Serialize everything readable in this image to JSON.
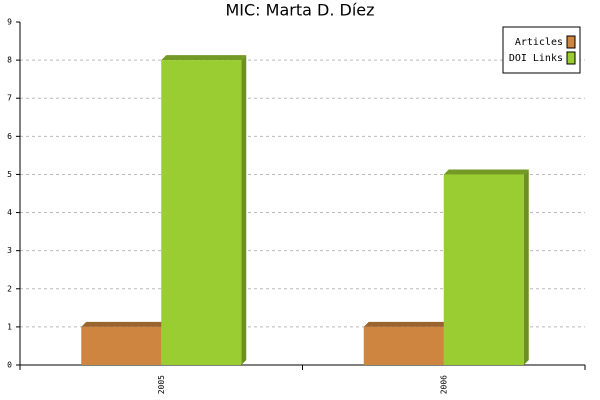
{
  "chart_data": {
    "type": "bar",
    "title": "MIC: Marta D. Díez",
    "categories": [
      "2005",
      "2006"
    ],
    "series": [
      {
        "name": "Articles",
        "color": "#cd853f",
        "values": [
          1,
          1
        ]
      },
      {
        "name": "DOI Links",
        "color": "#9acd32",
        "values": [
          8,
          5
        ]
      }
    ],
    "ylim": [
      0,
      9
    ],
    "yticks": [
      0,
      1,
      2,
      3,
      4,
      5,
      6,
      7,
      8,
      9
    ],
    "grid": true,
    "legend": "top-right"
  }
}
